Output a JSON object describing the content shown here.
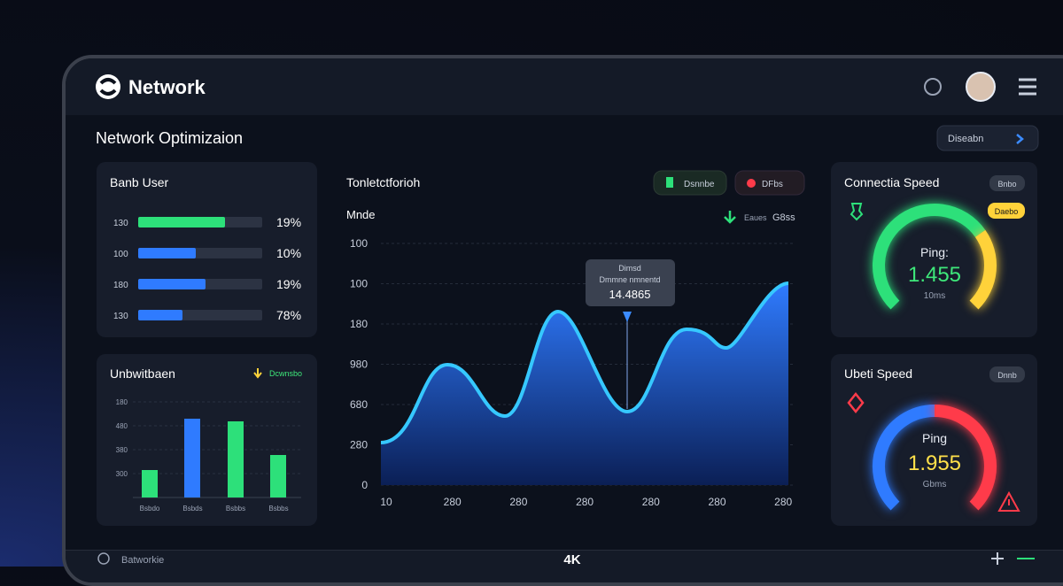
{
  "header": {
    "brand": "Network",
    "title": "Network Optimizaion",
    "dropdown": "Diseabn"
  },
  "bandwidth_panel": {
    "title": "Banb User",
    "rows": [
      [
        "130",
        "19%"
      ],
      [
        "100",
        "10%"
      ],
      [
        "180",
        "19%"
      ],
      [
        "130",
        "78%"
      ]
    ]
  },
  "bar_panel": {
    "title": "Unbwitbaen",
    "badge": "Dcwnsbo",
    "y_labels": [
      "180",
      "480",
      "380",
      "300"
    ],
    "x_labels": [
      "Bsbdo",
      "Bsbds",
      "Bsbbs",
      "Bsbbs"
    ]
  },
  "main_chart": {
    "title": "Tonletctforioh",
    "buttons": [
      "Dsnnbe",
      "DFbs"
    ],
    "subtitle": "Mnde",
    "legend": [
      "Eaues",
      "G8ss"
    ],
    "tooltip": {
      "title": "Dimsd",
      "subtitle": "Dmmne nmnentd",
      "value": "14.4865"
    },
    "y_labels": [
      "100",
      "100",
      "180",
      "980",
      "680",
      "280",
      "0"
    ],
    "x_labels": [
      "10",
      "280",
      "280",
      "280",
      "280",
      "280",
      "280"
    ]
  },
  "gauge_top": {
    "title": "Connectia Speed",
    "badge": "Bnbo",
    "tag": "Daebo",
    "label": "Ping:",
    "value": "1.455",
    "unit": "10ms"
  },
  "gauge_bottom": {
    "title": "Ubeti Speed",
    "badge": "Dnnb",
    "label": "Ping",
    "value": "1.955",
    "unit": "Gbms"
  },
  "footer": {
    "left": "Batworkie",
    "center": "4K"
  }
}
